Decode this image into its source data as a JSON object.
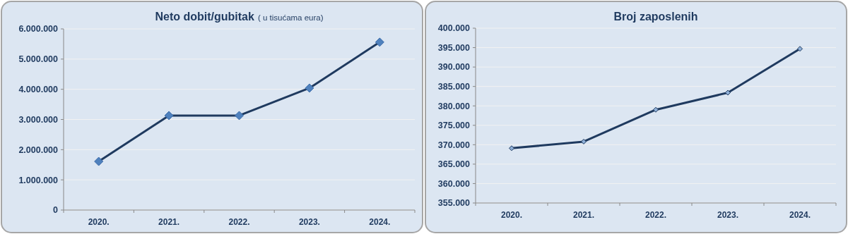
{
  "chart_data": [
    {
      "type": "line",
      "title": "Neto dobit/gubitak",
      "subtitle": "( u tisućama eura)",
      "categories": [
        "2020.",
        "2021.",
        "2022.",
        "2023.",
        "2024."
      ],
      "series": [
        {
          "color": "#1f3a5f",
          "values": [
            1610000,
            3130000,
            3130000,
            4040000,
            5560000
          ]
        }
      ],
      "ylim": [
        0,
        6000000
      ],
      "yticks": [
        0,
        {
          "value": 1000000,
          "label": "1.000.000"
        },
        {
          "value": 2000000,
          "label": "2.000.000"
        },
        {
          "value": 3000000,
          "label": "3.000.000"
        },
        {
          "value": 4000000,
          "label": "4.000.000"
        },
        {
          "value": 5000000,
          "label": "5.000.000"
        },
        {
          "value": 6000000,
          "label": "6.000.000"
        }
      ],
      "grid": "y",
      "marker": "diamond"
    },
    {
      "type": "line",
      "title": "Broj zaposlenih",
      "categories": [
        "2020.",
        "2021.",
        "2022.",
        "2023.",
        "2024."
      ],
      "series": [
        {
          "color": "#1f3a5f",
          "values": [
            369100,
            370800,
            379000,
            383400,
            394700
          ]
        }
      ],
      "ylim": [
        355000,
        400000
      ],
      "yticks": [
        {
          "value": 355000,
          "label": "355.000"
        },
        {
          "value": 360000,
          "label": "360.000"
        },
        {
          "value": 365000,
          "label": "365.000"
        },
        {
          "value": 370000,
          "label": "370.000"
        },
        {
          "value": 375000,
          "label": "375.000"
        },
        {
          "value": 380000,
          "label": "380.000"
        },
        {
          "value": 385000,
          "label": "385.000"
        },
        {
          "value": 390000,
          "label": "390.000"
        },
        {
          "value": 395000,
          "label": "395.000"
        },
        {
          "value": 400000,
          "label": "400.000"
        }
      ],
      "grid": "y",
      "marker": "diamond"
    }
  ]
}
